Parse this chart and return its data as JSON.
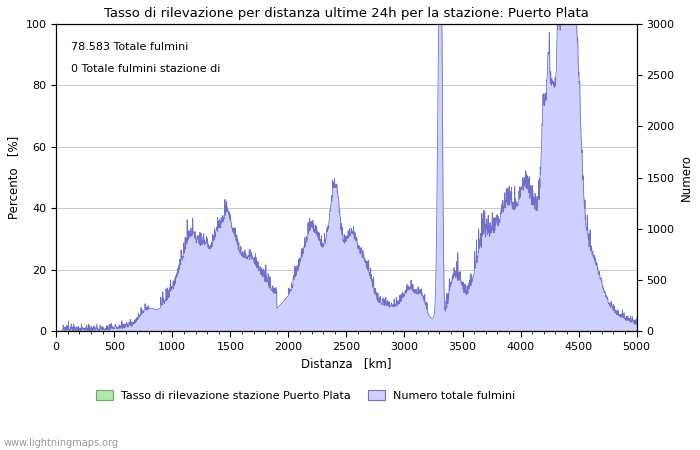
{
  "title": "Tasso di rilevazione per distanza ultime 24h per la stazione: Puerto Plata",
  "xlabel": "Distanza   [km]",
  "ylabel_left": "Percento   [%]",
  "ylabel_right": "Numero",
  "annotation_line1": "78.583 Totale fulmini",
  "annotation_line2": "0 Totale fulmini stazione di",
  "xlim": [
    0,
    5000
  ],
  "ylim_left": [
    0,
    100
  ],
  "ylim_right": [
    0,
    3000
  ],
  "xticks": [
    0,
    500,
    1000,
    1500,
    2000,
    2500,
    3000,
    3500,
    4000,
    4500,
    5000
  ],
  "yticks_left": [
    0,
    20,
    40,
    60,
    80,
    100
  ],
  "yticks_right": [
    0,
    500,
    1000,
    1500,
    2000,
    2500,
    3000
  ],
  "fill_color_blue": "#d0d0ff",
  "fill_color_green": "#b0e8b0",
  "line_color_blue": "#7070cc",
  "line_color_green": "#66aa66",
  "legend_label_green": "Tasso di rilevazione stazione Puerto Plata",
  "legend_label_blue": "Numero totale fulmini",
  "watermark": "www.lightningmaps.org",
  "background_color": "#ffffff",
  "grid_color": "#c8c8c8"
}
